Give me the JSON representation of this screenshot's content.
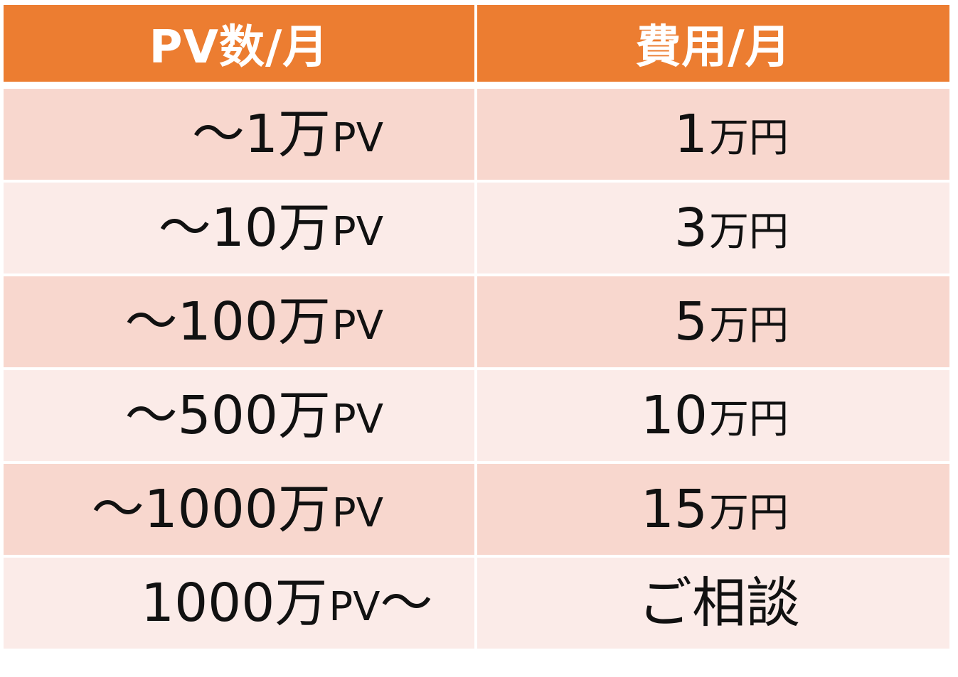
{
  "table": {
    "headers": {
      "pv": "PV数/月",
      "fee": "費用/月"
    },
    "rows": [
      {
        "pv_prefix": "～",
        "pv_number": "1",
        "pv_unit": "万",
        "pv_suffix": "PV",
        "pv_trailing": "",
        "fee_number": "1",
        "fee_unit": "万円"
      },
      {
        "pv_prefix": "～",
        "pv_number": "10",
        "pv_unit": "万",
        "pv_suffix": "PV",
        "pv_trailing": "",
        "fee_number": "3",
        "fee_unit": "万円"
      },
      {
        "pv_prefix": "～",
        "pv_number": "100",
        "pv_unit": "万",
        "pv_suffix": "PV",
        "pv_trailing": "",
        "fee_number": "5",
        "fee_unit": "万円"
      },
      {
        "pv_prefix": "～",
        "pv_number": "500",
        "pv_unit": "万",
        "pv_suffix": "PV",
        "pv_trailing": "",
        "fee_number": "10",
        "fee_unit": "万円"
      },
      {
        "pv_prefix": "～",
        "pv_number": "1000",
        "pv_unit": "万",
        "pv_suffix": "PV",
        "pv_trailing": "",
        "fee_number": "15",
        "fee_unit": "万円"
      },
      {
        "pv_prefix": "",
        "pv_number": "1000",
        "pv_unit": "万",
        "pv_suffix": "PV",
        "pv_trailing": "～",
        "fee_text": "ご相談"
      }
    ]
  },
  "colors": {
    "header_bg": "#ec7d31",
    "row_dark_bg": "#f8d7ce",
    "row_light_bg": "#fbebe8",
    "header_text": "#ffffff",
    "body_text": "#111111"
  }
}
